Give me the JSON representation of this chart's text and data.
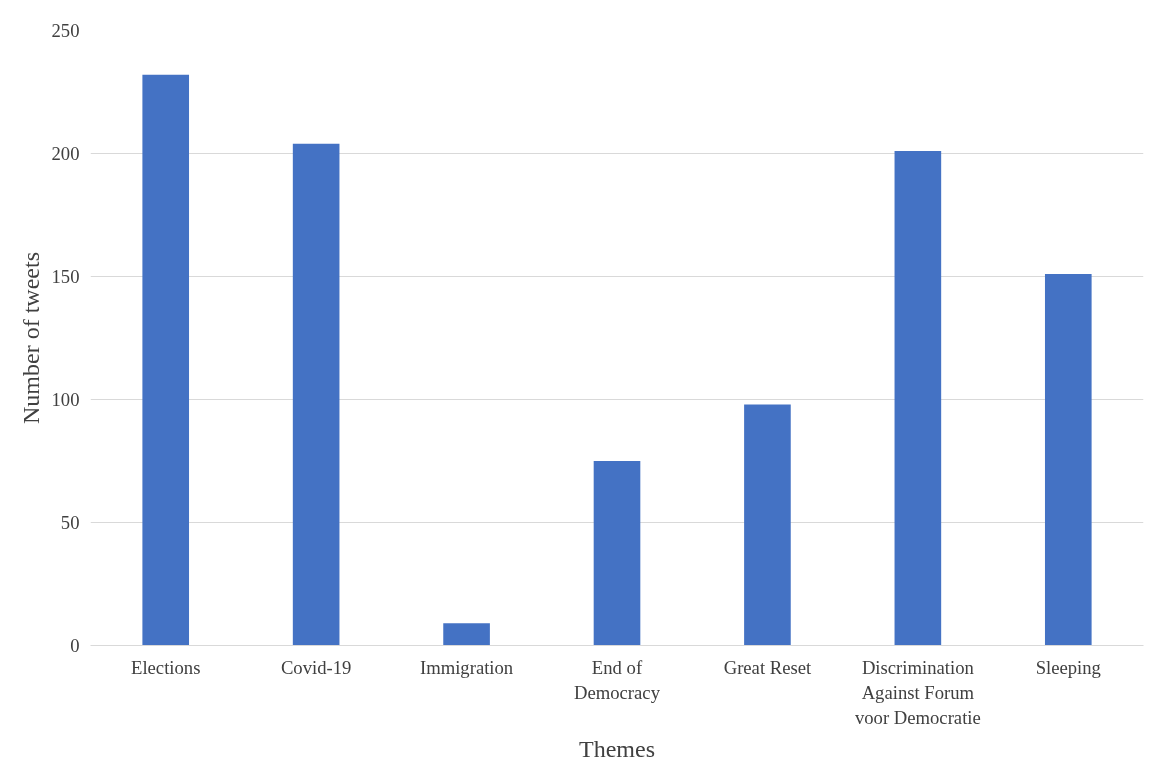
{
  "chart_data": {
    "type": "bar",
    "xlabel": "Themes",
    "ylabel": "Number of tweets",
    "categories": [
      "Elections",
      "Covid-19",
      "Immigration",
      "End of Democracy",
      "Great Reset",
      "Discrimination Against Forum voor Democratie",
      "Sleeping"
    ],
    "values": [
      232,
      204,
      9,
      75,
      98,
      201,
      151
    ],
    "color": "#4472c4",
    "ylim": [
      0,
      250
    ],
    "yticks": [
      0,
      50,
      100,
      150,
      200,
      250
    ],
    "grid": "y"
  }
}
